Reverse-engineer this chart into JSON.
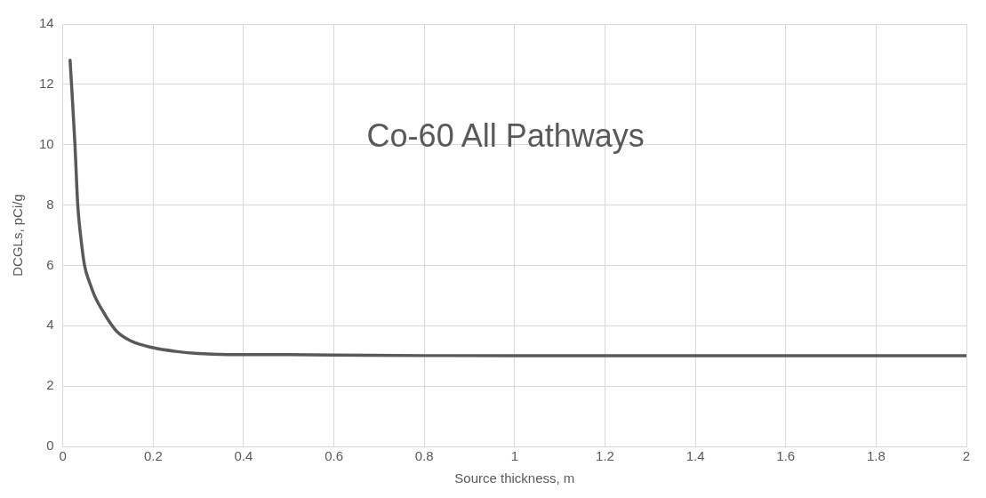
{
  "chart_data": {
    "type": "line",
    "title": "Co-60 All Pathways",
    "xlabel": "Source thickness, m",
    "ylabel": "DCGLs, pCi/g",
    "series": [
      {
        "color": "#595959",
        "x": [
          0.016,
          0.02,
          0.0268,
          0.033,
          0.04,
          0.048,
          0.06,
          0.07,
          0.08,
          0.092,
          0.1,
          0.12,
          0.15,
          0.2,
          0.25,
          0.3,
          0.4,
          0.5,
          0.6,
          0.8,
          1,
          1.5,
          2
        ],
        "values": [
          12.8,
          11.8,
          10,
          8,
          6.9,
          6,
          5.4,
          5,
          4.7,
          4.4,
          4.2,
          3.8,
          3.5,
          3.27,
          3.15,
          3.08,
          3.04,
          3.04,
          3.03,
          3.01,
          3.01,
          3.01,
          3.01
        ]
      }
    ],
    "xlim": [
      0,
      2
    ],
    "xticks": [
      0,
      0.2,
      0.4,
      0.6,
      0.8,
      1,
      1.2,
      1.4,
      1.6,
      1.8,
      2
    ],
    "ylim": [
      0,
      14
    ],
    "yticks": [
      0,
      2,
      4,
      6,
      8,
      10,
      12,
      14
    ],
    "grid": true,
    "marker": "none",
    "line_style": "solid"
  }
}
